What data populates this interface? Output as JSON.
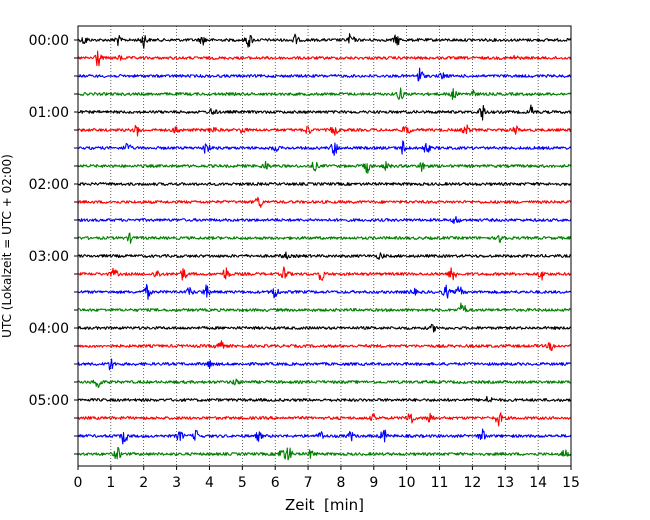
{
  "chart_data": {
    "type": "line",
    "chart_kind": "helicorder",
    "title": "",
    "xlabel": "Zeit  [min]",
    "ylabel": "UTC (Lokalzeit = UTC + 02:00)",
    "xlim": [
      0,
      15
    ],
    "x_ticks": [
      "0",
      "1",
      "2",
      "3",
      "4",
      "5",
      "6",
      "7",
      "8",
      "9",
      "10",
      "11",
      "12",
      "13",
      "14",
      "15"
    ],
    "y_tick_labels": [
      "00:00",
      "01:00",
      "02:00",
      "03:00",
      "04:00",
      "05:00"
    ],
    "minutes_per_trace": 15,
    "grid": "vertical dotted lines at each minute",
    "trace_colors": [
      "#000000",
      "#ff0000",
      "#0000ff",
      "#008000"
    ],
    "series": [
      {
        "start": "00:00",
        "color": "#000000",
        "events": [
          [
            0.2,
            4
          ],
          [
            1.2,
            5
          ],
          [
            2.0,
            7
          ],
          [
            3.8,
            4
          ],
          [
            5.2,
            7
          ],
          [
            6.6,
            5
          ],
          [
            8.3,
            6
          ],
          [
            9.7,
            5
          ]
        ]
      },
      {
        "start": "00:15",
        "color": "#ff0000",
        "events": [
          [
            0.6,
            9
          ],
          [
            1.3,
            2
          ],
          [
            13.3,
            2
          ]
        ]
      },
      {
        "start": "00:30",
        "color": "#0000ff",
        "events": [
          [
            10.4,
            8
          ],
          [
            11.1,
            3
          ]
        ]
      },
      {
        "start": "00:45",
        "color": "#008000",
        "events": [
          [
            9.8,
            6
          ],
          [
            11.4,
            5
          ],
          [
            12.0,
            3
          ]
        ]
      },
      {
        "start": "01:00",
        "color": "#000000",
        "events": [
          [
            4.1,
            4
          ],
          [
            12.3,
            8
          ],
          [
            13.8,
            6
          ]
        ]
      },
      {
        "start": "01:15",
        "color": "#ff0000",
        "events": [
          [
            1.8,
            5
          ],
          [
            3.0,
            4
          ],
          [
            4.1,
            4
          ],
          [
            5.0,
            3
          ],
          [
            7.0,
            4
          ],
          [
            7.8,
            5
          ],
          [
            10.0,
            6
          ],
          [
            11.8,
            5
          ],
          [
            13.3,
            4
          ]
        ]
      },
      {
        "start": "01:30",
        "color": "#0000ff",
        "events": [
          [
            1.5,
            5
          ],
          [
            3.9,
            6
          ],
          [
            6.0,
            3
          ],
          [
            7.8,
            7
          ],
          [
            9.9,
            7
          ],
          [
            10.6,
            5
          ]
        ]
      },
      {
        "start": "01:45",
        "color": "#008000",
        "events": [
          [
            5.7,
            4
          ],
          [
            7.2,
            4
          ],
          [
            8.8,
            6
          ],
          [
            9.4,
            4
          ],
          [
            10.5,
            6
          ]
        ]
      },
      {
        "start": "02:00",
        "color": "#000000",
        "events": []
      },
      {
        "start": "02:15",
        "color": "#ff0000",
        "events": [
          [
            5.5,
            7
          ]
        ]
      },
      {
        "start": "02:30",
        "color": "#0000ff",
        "events": [
          [
            11.5,
            4
          ]
        ]
      },
      {
        "start": "02:45",
        "color": "#008000",
        "events": [
          [
            1.6,
            4
          ],
          [
            12.9,
            6
          ]
        ]
      },
      {
        "start": "03:00",
        "color": "#000000",
        "events": [
          [
            6.3,
            3
          ],
          [
            9.2,
            3
          ]
        ]
      },
      {
        "start": "03:15",
        "color": "#ff0000",
        "events": [
          [
            1.1,
            5
          ],
          [
            2.4,
            4
          ],
          [
            3.2,
            6
          ],
          [
            4.5,
            6
          ],
          [
            6.3,
            7
          ],
          [
            7.4,
            6
          ],
          [
            11.4,
            9
          ],
          [
            14.1,
            5
          ]
        ]
      },
      {
        "start": "03:30",
        "color": "#0000ff",
        "events": [
          [
            2.1,
            7
          ],
          [
            3.4,
            4
          ],
          [
            3.9,
            6
          ],
          [
            6.0,
            7
          ],
          [
            10.2,
            3
          ],
          [
            11.2,
            6
          ],
          [
            11.6,
            5
          ]
        ]
      },
      {
        "start": "03:45",
        "color": "#008000",
        "events": [
          [
            11.7,
            8
          ]
        ]
      },
      {
        "start": "04:00",
        "color": "#000000",
        "events": [
          [
            10.8,
            3
          ]
        ]
      },
      {
        "start": "04:15",
        "color": "#ff0000",
        "events": [
          [
            4.3,
            8
          ],
          [
            14.4,
            4
          ]
        ]
      },
      {
        "start": "04:30",
        "color": "#0000ff",
        "events": [
          [
            1.0,
            6
          ],
          [
            4.0,
            3
          ]
        ]
      },
      {
        "start": "04:45",
        "color": "#008000",
        "events": [
          [
            0.6,
            7
          ],
          [
            4.8,
            3
          ]
        ]
      },
      {
        "start": "05:00",
        "color": "#000000",
        "events": [
          [
            12.5,
            4
          ]
        ]
      },
      {
        "start": "05:15",
        "color": "#ff0000",
        "events": [
          [
            9.0,
            3
          ],
          [
            10.1,
            8
          ],
          [
            10.7,
            6
          ],
          [
            12.8,
            7
          ]
        ]
      },
      {
        "start": "05:30",
        "color": "#0000ff",
        "events": [
          [
            1.4,
            8
          ],
          [
            3.1,
            5
          ],
          [
            3.6,
            5
          ],
          [
            5.5,
            4
          ],
          [
            7.4,
            4
          ],
          [
            8.3,
            4
          ],
          [
            9.3,
            6
          ],
          [
            12.3,
            6
          ]
        ]
      },
      {
        "start": "05:45",
        "color": "#008000",
        "events": [
          [
            1.2,
            6
          ],
          [
            6.2,
            5
          ],
          [
            6.4,
            8
          ],
          [
            7.1,
            4
          ],
          [
            14.8,
            4
          ]
        ]
      }
    ]
  }
}
